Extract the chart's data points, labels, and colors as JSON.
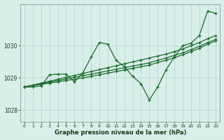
{
  "background_color": "#d8eee9",
  "grid_color": "#b0d4ce",
  "line_color": "#1a6b2a",
  "title": "Graphe pression niveau de la mer (hPa)",
  "xlim": [
    -0.5,
    23.5
  ],
  "ylim": [
    1027.65,
    1031.3
  ],
  "yticks": [
    1028,
    1029,
    1030
  ],
  "xticks": [
    0,
    1,
    2,
    3,
    4,
    5,
    6,
    7,
    8,
    9,
    10,
    11,
    12,
    13,
    14,
    15,
    16,
    17,
    18,
    19,
    20,
    21,
    22,
    23
  ],
  "series_wavy": [
    1028.72,
    1028.72,
    1028.75,
    1029.1,
    1029.12,
    1029.12,
    1028.88,
    1029.15,
    1029.65,
    1030.1,
    1030.05,
    1029.55,
    1029.35,
    1029.05,
    1028.82,
    1028.32,
    1028.72,
    1029.25,
    1029.65,
    1030.0,
    1030.08,
    1030.32,
    1031.08,
    1031.0
  ],
  "series_linear1": [
    1028.72,
    1028.76,
    1028.8,
    1028.84,
    1028.88,
    1028.92,
    1028.96,
    1029.0,
    1029.05,
    1029.1,
    1029.15,
    1029.2,
    1029.25,
    1029.3,
    1029.35,
    1029.4,
    1029.48,
    1029.55,
    1029.63,
    1029.72,
    1029.82,
    1029.92,
    1030.05,
    1030.15
  ],
  "series_linear2": [
    1028.72,
    1028.77,
    1028.82,
    1028.87,
    1028.92,
    1028.97,
    1029.02,
    1029.07,
    1029.12,
    1029.17,
    1029.22,
    1029.27,
    1029.32,
    1029.37,
    1029.42,
    1029.47,
    1029.55,
    1029.62,
    1029.7,
    1029.78,
    1029.88,
    1029.98,
    1030.1,
    1030.2
  ],
  "series_linear3": [
    1028.72,
    1028.78,
    1028.84,
    1028.9,
    1028.96,
    1029.02,
    1029.08,
    1029.14,
    1029.2,
    1029.26,
    1029.32,
    1029.38,
    1029.44,
    1029.5,
    1029.56,
    1029.62,
    1029.68,
    1029.74,
    1029.82,
    1029.9,
    1030.0,
    1030.1,
    1030.22,
    1030.32
  ]
}
